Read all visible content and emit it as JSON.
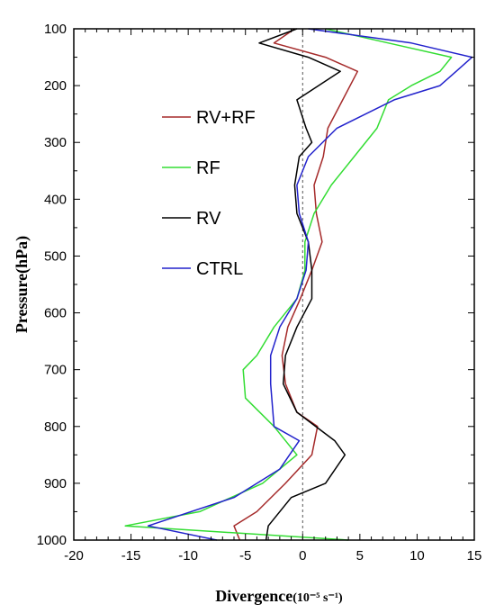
{
  "chart_data": {
    "type": "line",
    "xlabel": "Divergence",
    "xlabel_unit": "(10⁻⁵ s⁻¹)",
    "ylabel": "Pressure(hPa)",
    "xlim": [
      -20,
      15
    ],
    "ylim": [
      1000,
      100
    ],
    "y_axis_inverted": true,
    "x_ticks": [
      -20,
      -15,
      -10,
      -5,
      0,
      5,
      10,
      15
    ],
    "y_ticks": [
      100,
      200,
      300,
      400,
      500,
      600,
      700,
      800,
      900,
      1000
    ],
    "zero_reference_line": "dashed",
    "grid": false,
    "legend_position": "upper-left-inside",
    "series": [
      {
        "name": "RV+RF",
        "color": "#a52a2a",
        "points": [
          {
            "x": -0.7,
            "y": 100
          },
          {
            "x": -2.5,
            "y": 125
          },
          {
            "x": 2.0,
            "y": 150
          },
          {
            "x": 4.8,
            "y": 175
          },
          {
            "x": 3.5,
            "y": 225
          },
          {
            "x": 2.2,
            "y": 275
          },
          {
            "x": 1.8,
            "y": 325
          },
          {
            "x": 1.0,
            "y": 375
          },
          {
            "x": 1.2,
            "y": 425
          },
          {
            "x": 1.7,
            "y": 475
          },
          {
            "x": 0.8,
            "y": 525
          },
          {
            "x": -0.2,
            "y": 575
          },
          {
            "x": -1.3,
            "y": 625
          },
          {
            "x": -1.8,
            "y": 675
          },
          {
            "x": -1.5,
            "y": 725
          },
          {
            "x": -0.5,
            "y": 775
          },
          {
            "x": 1.3,
            "y": 800
          },
          {
            "x": 0.8,
            "y": 850
          },
          {
            "x": -1.5,
            "y": 900
          },
          {
            "x": -4.0,
            "y": 950
          },
          {
            "x": -6.0,
            "y": 975
          },
          {
            "x": -5.5,
            "y": 1000
          }
        ]
      },
      {
        "name": "RF",
        "color": "#33dd33",
        "points": [
          {
            "x": 2.0,
            "y": 100
          },
          {
            "x": 7.5,
            "y": 125
          },
          {
            "x": 13.0,
            "y": 150
          },
          {
            "x": 12.0,
            "y": 175
          },
          {
            "x": 9.5,
            "y": 200
          },
          {
            "x": 7.5,
            "y": 225
          },
          {
            "x": 6.5,
            "y": 275
          },
          {
            "x": 4.5,
            "y": 325
          },
          {
            "x": 2.5,
            "y": 375
          },
          {
            "x": 1.0,
            "y": 425
          },
          {
            "x": 0.2,
            "y": 475
          },
          {
            "x": 0.2,
            "y": 525
          },
          {
            "x": -0.5,
            "y": 575
          },
          {
            "x": -2.5,
            "y": 625
          },
          {
            "x": -4.0,
            "y": 675
          },
          {
            "x": -5.2,
            "y": 700
          },
          {
            "x": -5.0,
            "y": 750
          },
          {
            "x": -2.5,
            "y": 800
          },
          {
            "x": -0.5,
            "y": 850
          },
          {
            "x": -3.5,
            "y": 900
          },
          {
            "x": -9.0,
            "y": 950
          },
          {
            "x": -15.5,
            "y": 975
          },
          {
            "x": 4.0,
            "y": 1000
          }
        ]
      },
      {
        "name": "RV",
        "color": "#000000",
        "points": [
          {
            "x": -0.5,
            "y": 100
          },
          {
            "x": -3.8,
            "y": 125
          },
          {
            "x": 0.5,
            "y": 150
          },
          {
            "x": 3.3,
            "y": 175
          },
          {
            "x": -0.5,
            "y": 225
          },
          {
            "x": 0.3,
            "y": 275
          },
          {
            "x": 0.8,
            "y": 300
          },
          {
            "x": -0.3,
            "y": 325
          },
          {
            "x": -0.7,
            "y": 375
          },
          {
            "x": -0.5,
            "y": 425
          },
          {
            "x": 0.5,
            "y": 475
          },
          {
            "x": 0.8,
            "y": 525
          },
          {
            "x": 0.8,
            "y": 575
          },
          {
            "x": -0.5,
            "y": 625
          },
          {
            "x": -1.5,
            "y": 675
          },
          {
            "x": -1.7,
            "y": 725
          },
          {
            "x": -0.5,
            "y": 775
          },
          {
            "x": 2.8,
            "y": 825
          },
          {
            "x": 3.7,
            "y": 850
          },
          {
            "x": 2.0,
            "y": 900
          },
          {
            "x": -1.0,
            "y": 925
          },
          {
            "x": -3.0,
            "y": 975
          },
          {
            "x": -3.2,
            "y": 1000
          }
        ]
      },
      {
        "name": "CTRL",
        "color": "#2222cc",
        "points": [
          {
            "x": 0.5,
            "y": 100
          },
          {
            "x": 9.5,
            "y": 125
          },
          {
            "x": 14.8,
            "y": 150
          },
          {
            "x": 12.0,
            "y": 200
          },
          {
            "x": 8.0,
            "y": 225
          },
          {
            "x": 3.0,
            "y": 275
          },
          {
            "x": 0.5,
            "y": 325
          },
          {
            "x": -0.5,
            "y": 375
          },
          {
            "x": -0.3,
            "y": 425
          },
          {
            "x": 0.5,
            "y": 475
          },
          {
            "x": 0.3,
            "y": 525
          },
          {
            "x": -0.5,
            "y": 575
          },
          {
            "x": -2.0,
            "y": 625
          },
          {
            "x": -2.8,
            "y": 675
          },
          {
            "x": -2.8,
            "y": 725
          },
          {
            "x": -2.5,
            "y": 800
          },
          {
            "x": -0.3,
            "y": 825
          },
          {
            "x": -2.0,
            "y": 875
          },
          {
            "x": -6.0,
            "y": 925
          },
          {
            "x": -13.5,
            "y": 975
          },
          {
            "x": -7.5,
            "y": 1000
          }
        ]
      }
    ]
  }
}
